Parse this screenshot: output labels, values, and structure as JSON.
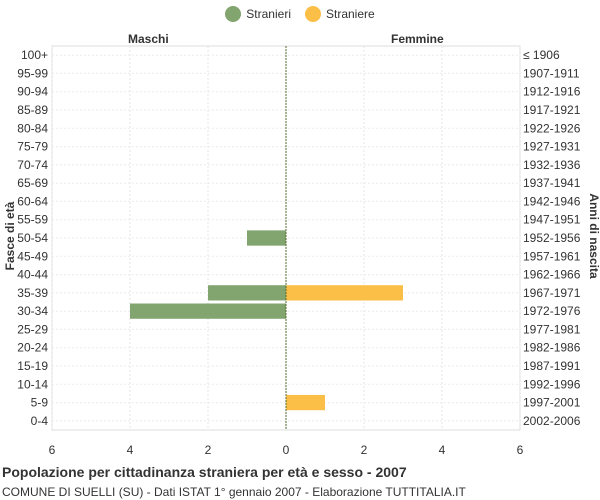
{
  "legend": {
    "stranieri": {
      "label": "Stranieri",
      "color": "#82a46f"
    },
    "straniere": {
      "label": "Straniere",
      "color": "#fbbe46"
    }
  },
  "labels": {
    "left_side": "Maschi",
    "right_side": "Femmine",
    "y_left_title": "Fasce di età",
    "y_right_title": "Anni di nascita"
  },
  "footer": {
    "title": "Popolazione per cittadinanza straniera per età e sesso - 2007",
    "subtitle": "COMUNE DI SUELLI (SU) - Dati ISTAT 1° gennaio 2007 - Elaborazione TUTTITALIA.IT"
  },
  "chart_data": {
    "type": "bar",
    "orientation": "horizontal-population-pyramid",
    "categories": [
      "100+",
      "95-99",
      "90-94",
      "85-89",
      "80-84",
      "75-79",
      "70-74",
      "65-69",
      "60-64",
      "55-59",
      "50-54",
      "45-49",
      "40-44",
      "35-39",
      "30-34",
      "25-29",
      "20-24",
      "15-19",
      "10-14",
      "5-9",
      "0-4"
    ],
    "birth_years": [
      "≤ 1906",
      "1907-1911",
      "1912-1916",
      "1917-1921",
      "1922-1926",
      "1927-1931",
      "1932-1936",
      "1937-1941",
      "1942-1946",
      "1947-1951",
      "1952-1956",
      "1957-1961",
      "1962-1966",
      "1967-1971",
      "1972-1976",
      "1977-1981",
      "1982-1986",
      "1987-1991",
      "1992-1996",
      "1997-2001",
      "2002-2006"
    ],
    "series": [
      {
        "name": "Stranieri",
        "side": "left",
        "color": "#82a46f",
        "values": [
          0,
          0,
          0,
          0,
          0,
          0,
          0,
          0,
          0,
          0,
          1,
          0,
          0,
          2,
          4,
          0,
          0,
          0,
          0,
          0,
          0
        ]
      },
      {
        "name": "Straniere",
        "side": "right",
        "color": "#fbbe46",
        "values": [
          0,
          0,
          0,
          0,
          0,
          0,
          0,
          0,
          0,
          0,
          0,
          0,
          0,
          3,
          0,
          0,
          0,
          0,
          0,
          1,
          0
        ]
      }
    ],
    "xlim": [
      -6,
      6
    ],
    "x_ticks": [
      -6,
      -4,
      -2,
      0,
      2,
      4,
      6
    ],
    "x_tick_labels": [
      "6",
      "4",
      "2",
      "0",
      "2",
      "4",
      "6"
    ],
    "grid": true,
    "legend_position": "top-center"
  }
}
